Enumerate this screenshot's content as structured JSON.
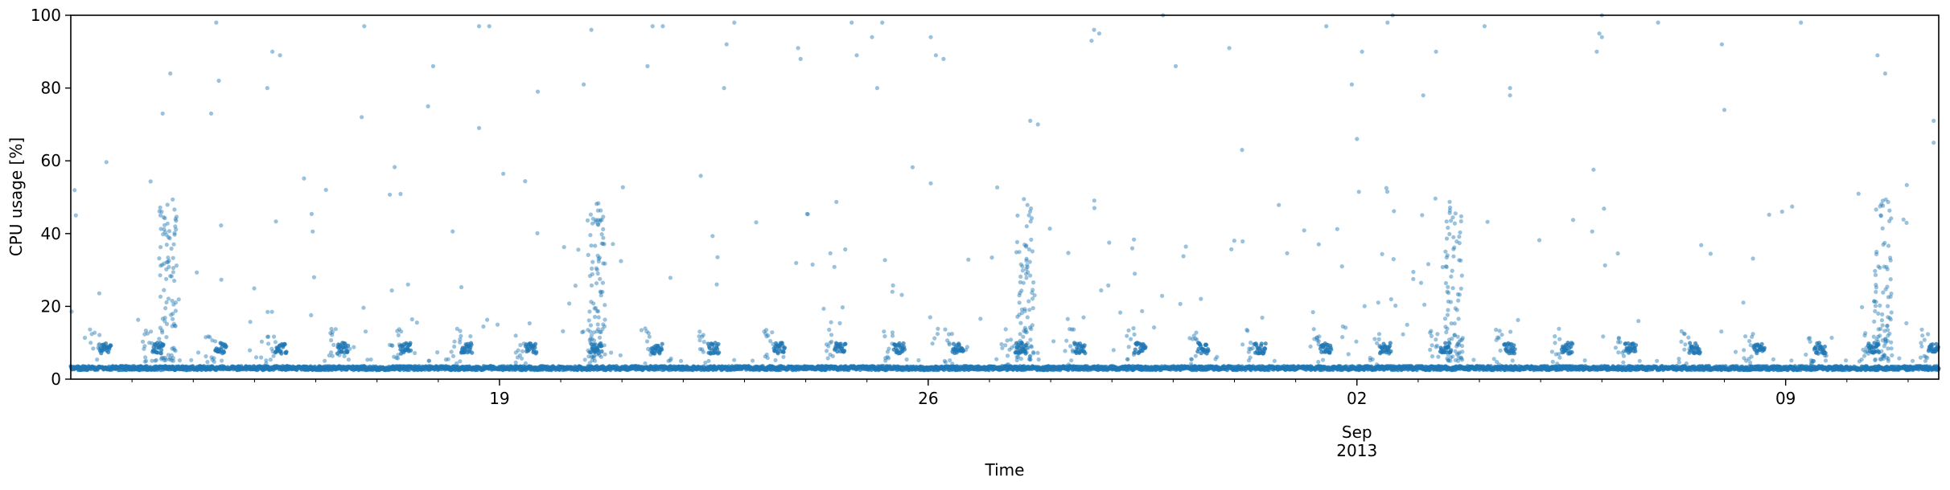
{
  "chart_data": {
    "type": "scatter",
    "title": "",
    "xlabel": "Time",
    "ylabel": "CPU usage [%]",
    "ylim": [
      0,
      100
    ],
    "xlim": [
      "2013-08-12T00:00",
      "2013-09-11T12:00"
    ],
    "x_tick_labels": [
      {
        "label": "19",
        "date": "2013-08-19"
      },
      {
        "label": "26",
        "date": "2013-08-26"
      },
      {
        "label": "02",
        "date": "2013-09-02",
        "sublabel": "Sep\n2013"
      },
      {
        "label": "09",
        "date": "2013-09-09"
      }
    ],
    "y_ticks": [
      0,
      20,
      40,
      60,
      80,
      100
    ],
    "grid": false,
    "legend": "none",
    "marker_color": "#1f77b4",
    "series_description": "CPU usage samples every few minutes; a steady baseline near 3% with daily bursts to 8-10% and occasional spikes toward 100%",
    "baseline_percent": 3,
    "daily_burst_percent": 8.5,
    "large_burst_dates": [
      "2013-08-13",
      "2013-08-20",
      "2013-08-27",
      "2013-09-03",
      "2013-09-10"
    ],
    "spike_points": [
      {
        "x": "2013-08-12T02:00",
        "y": 45
      },
      {
        "x": "2013-08-13T12:00",
        "y": 73
      },
      {
        "x": "2013-08-13T15:00",
        "y": 84
      },
      {
        "x": "2013-08-14T09:00",
        "y": 98
      },
      {
        "x": "2013-08-14T10:00",
        "y": 82
      },
      {
        "x": "2013-08-14T07:00",
        "y": 73
      },
      {
        "x": "2013-08-15T07:00",
        "y": 90
      },
      {
        "x": "2013-08-15T10:00",
        "y": 89
      },
      {
        "x": "2013-08-15T05:00",
        "y": 80
      },
      {
        "x": "2013-08-16T04:00",
        "y": 52
      },
      {
        "x": "2013-08-16T19:00",
        "y": 97
      },
      {
        "x": "2013-08-16T18:00",
        "y": 72
      },
      {
        "x": "2013-08-17T20:00",
        "y": 75
      },
      {
        "x": "2013-08-17T22:00",
        "y": 86
      },
      {
        "x": "2013-08-18T16:00",
        "y": 97
      },
      {
        "x": "2013-08-18T20:00",
        "y": 97
      },
      {
        "x": "2013-08-18T16:00",
        "y": 69
      },
      {
        "x": "2013-08-19T15:00",
        "y": 79
      },
      {
        "x": "2013-08-20T12:00",
        "y": 96
      },
      {
        "x": "2013-08-20T09:00",
        "y": 81
      },
      {
        "x": "2013-08-21T12:00",
        "y": 97
      },
      {
        "x": "2013-08-21T16:00",
        "y": 97
      },
      {
        "x": "2013-08-21T10:00",
        "y": 86
      },
      {
        "x": "2013-08-22T20:00",
        "y": 98
      },
      {
        "x": "2013-08-22T17:00",
        "y": 92
      },
      {
        "x": "2013-08-22T16:00",
        "y": 80
      },
      {
        "x": "2013-08-23T21:00",
        "y": 91
      },
      {
        "x": "2013-08-23T22:00",
        "y": 88
      },
      {
        "x": "2013-08-24T18:00",
        "y": 98
      },
      {
        "x": "2013-08-24T20:00",
        "y": 89
      },
      {
        "x": "2013-08-25T06:00",
        "y": 98
      },
      {
        "x": "2013-08-25T02:00",
        "y": 94
      },
      {
        "x": "2013-08-25T04:00",
        "y": 80
      },
      {
        "x": "2013-08-26T01:00",
        "y": 94
      },
      {
        "x": "2013-08-26T03:00",
        "y": 89
      },
      {
        "x": "2013-08-26T06:00",
        "y": 88
      },
      {
        "x": "2013-08-27T16:00",
        "y": 71
      },
      {
        "x": "2013-08-27T19:00",
        "y": 70
      },
      {
        "x": "2013-08-28T17:00",
        "y": 96
      },
      {
        "x": "2013-08-28T19:00",
        "y": 95
      },
      {
        "x": "2013-08-28T16:00",
        "y": 93
      },
      {
        "x": "2013-08-29T20:00",
        "y": 100
      },
      {
        "x": "2013-08-30T01:00",
        "y": 86
      },
      {
        "x": "2013-08-30T22:00",
        "y": 91
      },
      {
        "x": "2013-08-31T03:00",
        "y": 63
      },
      {
        "x": "2013-09-01T12:00",
        "y": 97
      },
      {
        "x": "2013-09-01T22:00",
        "y": 81
      },
      {
        "x": "2013-09-02T00:00",
        "y": 66
      },
      {
        "x": "2013-09-02T12:00",
        "y": 98
      },
      {
        "x": "2013-09-02T14:00",
        "y": 100
      },
      {
        "x": "2013-09-02T02:00",
        "y": 90
      },
      {
        "x": "2013-09-03T07:00",
        "y": 90
      },
      {
        "x": "2013-09-03T02:00",
        "y": 78
      },
      {
        "x": "2013-09-04T02:00",
        "y": 97
      },
      {
        "x": "2013-09-04T12:00",
        "y": 80
      },
      {
        "x": "2013-09-04T12:00",
        "y": 78
      },
      {
        "x": "2013-09-05T22:00",
        "y": 90
      },
      {
        "x": "2013-09-05T23:00",
        "y": 95
      },
      {
        "x": "2013-09-06T00:00",
        "y": 94
      },
      {
        "x": "2013-09-06T00:00",
        "y": 100
      },
      {
        "x": "2013-09-06T22:00",
        "y": 98
      },
      {
        "x": "2013-09-07T23:00",
        "y": 92
      },
      {
        "x": "2013-09-08T00:00",
        "y": 74
      },
      {
        "x": "2013-09-09T06:00",
        "y": 98
      },
      {
        "x": "2013-09-10T12:00",
        "y": 89
      },
      {
        "x": "2013-09-10T15:00",
        "y": 84
      },
      {
        "x": "2013-09-11T10:00",
        "y": 71
      },
      {
        "x": "2013-09-11T10:00",
        "y": 65
      }
    ]
  }
}
